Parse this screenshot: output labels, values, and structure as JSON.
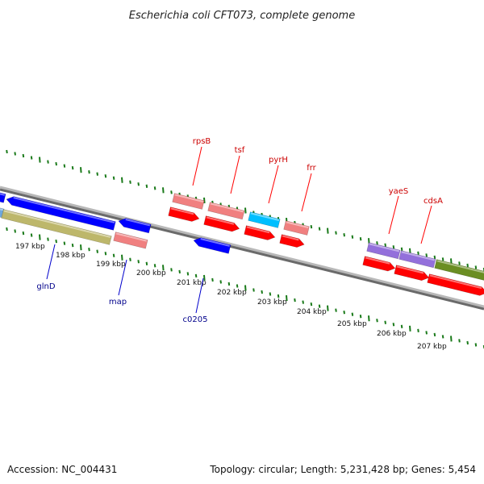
{
  "title": "Escherichia coli CFT073, complete genome",
  "footer": {
    "accession": "Accession: NC_004431",
    "summary": "Topology: circular; Length: 5,231,428 bp; Genes: 5,454"
  },
  "colors": {
    "backbone": "#7f7f7f",
    "tick": "#1a7a1a",
    "forward_cds": "#ff0000",
    "forward_rrna": "#f08080",
    "reverse_cds": "#0000ff",
    "trna": "#00bfff",
    "misc": "#9370db",
    "olive": "#bdb76b",
    "green": "#6b8e23",
    "top_label": "#cc0000",
    "bottom_label": "#00008b"
  },
  "kbp_labels": [
    "197 kbp",
    "198 kbp",
    "199 kbp",
    "200 kbp",
    "201 kbp",
    "202 kbp",
    "203 kbp",
    "204 kbp",
    "205 kbp",
    "206 kbp",
    "207 kbp"
  ],
  "top_genes": [
    "rpsB",
    "tsf",
    "pyrH",
    "frr",
    "yaeS",
    "cdsA"
  ],
  "bottom_genes": [
    "glnD",
    "map",
    "c0205"
  ]
}
